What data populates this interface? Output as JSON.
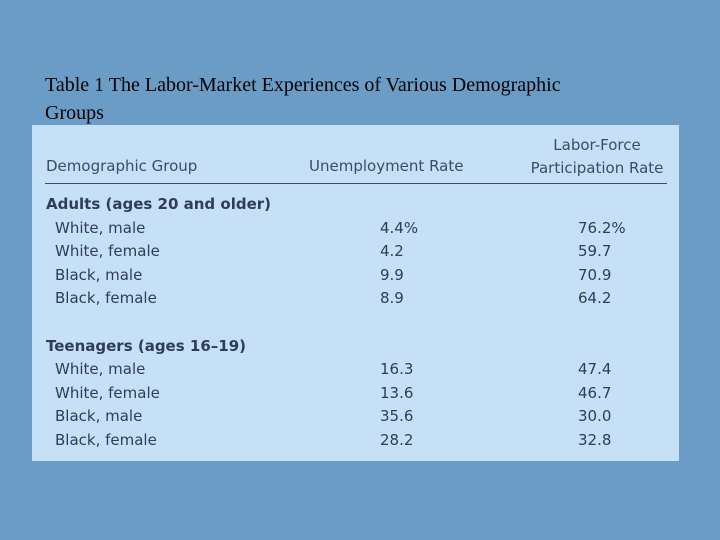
{
  "title": "Table 1 The Labor-Market Experiences of Various Demographic Groups",
  "table": {
    "headers": [
      "Demographic Group",
      "Unemployment Rate",
      "Labor-Force Participation Rate"
    ],
    "groups": [
      {
        "label": "Adults (ages 20 and older)",
        "rows": [
          [
            "White, male",
            "4.4%",
            "76.2%"
          ],
          [
            "White, female",
            "4.2",
            "59.7"
          ],
          [
            "Black, male",
            "9.9",
            "70.9"
          ],
          [
            "Black, female",
            "8.9",
            "64.2"
          ]
        ]
      },
      {
        "label": "Teenagers (ages 16–19)",
        "rows": [
          [
            "White, male",
            "16.3",
            "47.4"
          ],
          [
            "White, female",
            "13.6",
            "46.7"
          ],
          [
            "Black, male",
            "35.6",
            "30.0"
          ],
          [
            "Black, female",
            "28.2",
            "32.8"
          ]
        ]
      }
    ]
  }
}
